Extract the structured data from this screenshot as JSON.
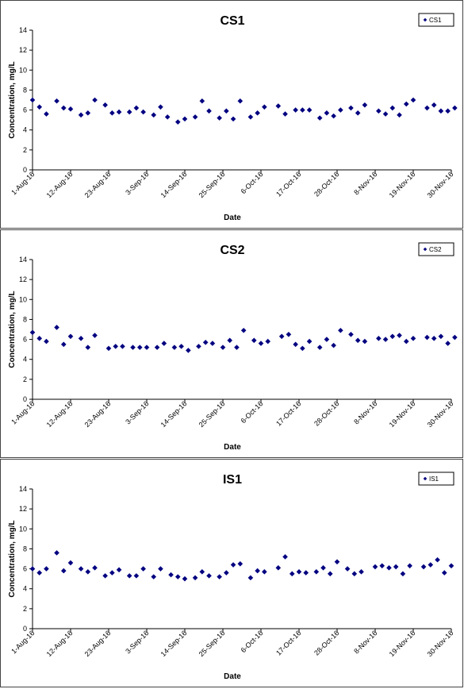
{
  "chart_data": [
    {
      "type": "scatter",
      "title": "CS1",
      "xlabel": "Date",
      "ylabel": "Concentration, mg/L",
      "ylim": [
        0,
        14
      ],
      "yticks": [
        0,
        2,
        4,
        6,
        8,
        10,
        12,
        14
      ],
      "xlim": [
        "2016-08-01",
        "2016-11-30"
      ],
      "xtick_labels": [
        "1-Aug-16",
        "12-Aug-16",
        "23-Aug-16",
        "3-Sep-16",
        "14-Sep-16",
        "25-Sep-16",
        "6-Oct-16",
        "17-Oct-16",
        "28-Oct-16",
        "8-Nov-16",
        "19-Nov-16",
        "30-Nov-16"
      ],
      "grid": false,
      "legend": "top-right",
      "color": "#000080",
      "series": [
        {
          "name": "CS1",
          "points": [
            {
              "x": "2016-08-01",
              "y": 7.0
            },
            {
              "x": "2016-08-03",
              "y": 6.3
            },
            {
              "x": "2016-08-05",
              "y": 5.6
            },
            {
              "x": "2016-08-08",
              "y": 6.9
            },
            {
              "x": "2016-08-10",
              "y": 6.2
            },
            {
              "x": "2016-08-12",
              "y": 6.1
            },
            {
              "x": "2016-08-15",
              "y": 5.5
            },
            {
              "x": "2016-08-17",
              "y": 5.7
            },
            {
              "x": "2016-08-19",
              "y": 7.0
            },
            {
              "x": "2016-08-22",
              "y": 6.5
            },
            {
              "x": "2016-08-24",
              "y": 5.7
            },
            {
              "x": "2016-08-26",
              "y": 5.8
            },
            {
              "x": "2016-08-29",
              "y": 5.8
            },
            {
              "x": "2016-08-31",
              "y": 6.2
            },
            {
              "x": "2016-09-02",
              "y": 5.8
            },
            {
              "x": "2016-09-05",
              "y": 5.5
            },
            {
              "x": "2016-09-07",
              "y": 6.3
            },
            {
              "x": "2016-09-09",
              "y": 5.3
            },
            {
              "x": "2016-09-12",
              "y": 4.8
            },
            {
              "x": "2016-09-14",
              "y": 5.1
            },
            {
              "x": "2016-09-17",
              "y": 5.3
            },
            {
              "x": "2016-09-19",
              "y": 6.9
            },
            {
              "x": "2016-09-21",
              "y": 5.9
            },
            {
              "x": "2016-09-24",
              "y": 5.2
            },
            {
              "x": "2016-09-26",
              "y": 5.9
            },
            {
              "x": "2016-09-28",
              "y": 5.1
            },
            {
              "x": "2016-09-30",
              "y": 6.9
            },
            {
              "x": "2016-10-03",
              "y": 5.3
            },
            {
              "x": "2016-10-05",
              "y": 5.7
            },
            {
              "x": "2016-10-07",
              "y": 6.3
            },
            {
              "x": "2016-10-11",
              "y": 6.4
            },
            {
              "x": "2016-10-13",
              "y": 5.6
            },
            {
              "x": "2016-10-16",
              "y": 6.0
            },
            {
              "x": "2016-10-18",
              "y": 6.0
            },
            {
              "x": "2016-10-20",
              "y": 6.0
            },
            {
              "x": "2016-10-23",
              "y": 5.2
            },
            {
              "x": "2016-10-25",
              "y": 5.7
            },
            {
              "x": "2016-10-27",
              "y": 5.4
            },
            {
              "x": "2016-10-29",
              "y": 6.0
            },
            {
              "x": "2016-11-01",
              "y": 6.2
            },
            {
              "x": "2016-11-03",
              "y": 5.7
            },
            {
              "x": "2016-11-05",
              "y": 6.5
            },
            {
              "x": "2016-11-09",
              "y": 5.9
            },
            {
              "x": "2016-11-11",
              "y": 5.6
            },
            {
              "x": "2016-11-13",
              "y": 6.2
            },
            {
              "x": "2016-11-15",
              "y": 5.5
            },
            {
              "x": "2016-11-17",
              "y": 6.6
            },
            {
              "x": "2016-11-19",
              "y": 7.0
            },
            {
              "x": "2016-11-23",
              "y": 6.2
            },
            {
              "x": "2016-11-25",
              "y": 6.5
            },
            {
              "x": "2016-11-27",
              "y": 5.9
            },
            {
              "x": "2016-11-29",
              "y": 5.9
            },
            {
              "x": "2016-12-01",
              "y": 6.2
            }
          ]
        }
      ]
    },
    {
      "type": "scatter",
      "title": "CS2",
      "xlabel": "Date",
      "ylabel": "Concentration, mg/L",
      "ylim": [
        0,
        14
      ],
      "yticks": [
        0,
        2,
        4,
        6,
        8,
        10,
        12,
        14
      ],
      "xlim": [
        "2016-08-01",
        "2016-11-30"
      ],
      "xtick_labels": [
        "1-Aug-16",
        "12-Aug-16",
        "23-Aug-16",
        "3-Sep-16",
        "14-Sep-16",
        "25-Sep-16",
        "6-Oct-16",
        "17-Oct-16",
        "28-Oct-16",
        "8-Nov-16",
        "19-Nov-16",
        "30-Nov-16"
      ],
      "grid": false,
      "legend": "top-right",
      "color": "#000080",
      "series": [
        {
          "name": "CS2",
          "points": [
            {
              "x": "2016-08-01",
              "y": 6.7
            },
            {
              "x": "2016-08-03",
              "y": 6.1
            },
            {
              "x": "2016-08-05",
              "y": 5.8
            },
            {
              "x": "2016-08-08",
              "y": 7.2
            },
            {
              "x": "2016-08-10",
              "y": 5.5
            },
            {
              "x": "2016-08-12",
              "y": 6.3
            },
            {
              "x": "2016-08-15",
              "y": 6.1
            },
            {
              "x": "2016-08-17",
              "y": 5.2
            },
            {
              "x": "2016-08-19",
              "y": 6.4
            },
            {
              "x": "2016-08-23",
              "y": 5.1
            },
            {
              "x": "2016-08-25",
              "y": 5.3
            },
            {
              "x": "2016-08-27",
              "y": 5.3
            },
            {
              "x": "2016-08-30",
              "y": 5.2
            },
            {
              "x": "2016-09-01",
              "y": 5.2
            },
            {
              "x": "2016-09-03",
              "y": 5.2
            },
            {
              "x": "2016-09-06",
              "y": 5.2
            },
            {
              "x": "2016-09-08",
              "y": 5.6
            },
            {
              "x": "2016-09-11",
              "y": 5.2
            },
            {
              "x": "2016-09-13",
              "y": 5.3
            },
            {
              "x": "2016-09-15",
              "y": 4.9
            },
            {
              "x": "2016-09-18",
              "y": 5.3
            },
            {
              "x": "2016-09-20",
              "y": 5.7
            },
            {
              "x": "2016-09-22",
              "y": 5.6
            },
            {
              "x": "2016-09-25",
              "y": 5.2
            },
            {
              "x": "2016-09-27",
              "y": 5.9
            },
            {
              "x": "2016-09-29",
              "y": 5.2
            },
            {
              "x": "2016-10-01",
              "y": 6.9
            },
            {
              "x": "2016-10-04",
              "y": 5.9
            },
            {
              "x": "2016-10-06",
              "y": 5.6
            },
            {
              "x": "2016-10-08",
              "y": 5.8
            },
            {
              "x": "2016-10-12",
              "y": 6.3
            },
            {
              "x": "2016-10-14",
              "y": 6.5
            },
            {
              "x": "2016-10-16",
              "y": 5.5
            },
            {
              "x": "2016-10-18",
              "y": 5.1
            },
            {
              "x": "2016-10-20",
              "y": 5.8
            },
            {
              "x": "2016-10-23",
              "y": 5.2
            },
            {
              "x": "2016-10-25",
              "y": 6.0
            },
            {
              "x": "2016-10-27",
              "y": 5.4
            },
            {
              "x": "2016-10-29",
              "y": 6.9
            },
            {
              "x": "2016-11-01",
              "y": 6.5
            },
            {
              "x": "2016-11-03",
              "y": 5.9
            },
            {
              "x": "2016-11-05",
              "y": 5.8
            },
            {
              "x": "2016-11-09",
              "y": 6.1
            },
            {
              "x": "2016-11-11",
              "y": 6.0
            },
            {
              "x": "2016-11-13",
              "y": 6.3
            },
            {
              "x": "2016-11-15",
              "y": 6.4
            },
            {
              "x": "2016-11-17",
              "y": 5.8
            },
            {
              "x": "2016-11-19",
              "y": 6.1
            },
            {
              "x": "2016-11-23",
              "y": 6.2
            },
            {
              "x": "2016-11-25",
              "y": 6.1
            },
            {
              "x": "2016-11-27",
              "y": 6.3
            },
            {
              "x": "2016-11-29",
              "y": 5.6
            },
            {
              "x": "2016-12-01",
              "y": 6.2
            }
          ]
        }
      ]
    },
    {
      "type": "scatter",
      "title": "IS1",
      "xlabel": "Date",
      "ylabel": "Concentration, mg/L",
      "ylim": [
        0,
        14
      ],
      "yticks": [
        0,
        2,
        4,
        6,
        8,
        10,
        12,
        14
      ],
      "xlim": [
        "2016-08-01",
        "2016-11-30"
      ],
      "xtick_labels": [
        "1-Aug-16",
        "12-Aug-16",
        "23-Aug-16",
        "3-Sep-16",
        "14-Sep-16",
        "25-Sep-16",
        "6-Oct-16",
        "17-Oct-16",
        "28-Oct-16",
        "8-Nov-16",
        "19-Nov-16",
        "30-Nov-16"
      ],
      "grid": false,
      "legend": "top-right",
      "color": "#000080",
      "series": [
        {
          "name": "IS1",
          "points": [
            {
              "x": "2016-08-01",
              "y": 6.0
            },
            {
              "x": "2016-08-03",
              "y": 5.6
            },
            {
              "x": "2016-08-05",
              "y": 6.0
            },
            {
              "x": "2016-08-08",
              "y": 7.6
            },
            {
              "x": "2016-08-10",
              "y": 5.8
            },
            {
              "x": "2016-08-12",
              "y": 6.6
            },
            {
              "x": "2016-08-15",
              "y": 6.0
            },
            {
              "x": "2016-08-17",
              "y": 5.7
            },
            {
              "x": "2016-08-19",
              "y": 6.1
            },
            {
              "x": "2016-08-22",
              "y": 5.3
            },
            {
              "x": "2016-08-24",
              "y": 5.6
            },
            {
              "x": "2016-08-26",
              "y": 5.9
            },
            {
              "x": "2016-08-29",
              "y": 5.3
            },
            {
              "x": "2016-08-31",
              "y": 5.3
            },
            {
              "x": "2016-09-02",
              "y": 6.0
            },
            {
              "x": "2016-09-05",
              "y": 5.2
            },
            {
              "x": "2016-09-07",
              "y": 6.0
            },
            {
              "x": "2016-09-10",
              "y": 5.4
            },
            {
              "x": "2016-09-12",
              "y": 5.2
            },
            {
              "x": "2016-09-14",
              "y": 5.0
            },
            {
              "x": "2016-09-17",
              "y": 5.1
            },
            {
              "x": "2016-09-19",
              "y": 5.7
            },
            {
              "x": "2016-09-21",
              "y": 5.3
            },
            {
              "x": "2016-09-24",
              "y": 5.2
            },
            {
              "x": "2016-09-26",
              "y": 5.6
            },
            {
              "x": "2016-09-28",
              "y": 6.4
            },
            {
              "x": "2016-09-30",
              "y": 6.5
            },
            {
              "x": "2016-10-03",
              "y": 5.1
            },
            {
              "x": "2016-10-05",
              "y": 5.8
            },
            {
              "x": "2016-10-07",
              "y": 5.7
            },
            {
              "x": "2016-10-11",
              "y": 6.1
            },
            {
              "x": "2016-10-13",
              "y": 7.2
            },
            {
              "x": "2016-10-15",
              "y": 5.5
            },
            {
              "x": "2016-10-17",
              "y": 5.7
            },
            {
              "x": "2016-10-19",
              "y": 5.6
            },
            {
              "x": "2016-10-22",
              "y": 5.7
            },
            {
              "x": "2016-10-24",
              "y": 6.1
            },
            {
              "x": "2016-10-26",
              "y": 5.5
            },
            {
              "x": "2016-10-28",
              "y": 6.7
            },
            {
              "x": "2016-10-31",
              "y": 6.0
            },
            {
              "x": "2016-11-02",
              "y": 5.5
            },
            {
              "x": "2016-11-04",
              "y": 5.7
            },
            {
              "x": "2016-11-08",
              "y": 6.2
            },
            {
              "x": "2016-11-10",
              "y": 6.3
            },
            {
              "x": "2016-11-12",
              "y": 6.1
            },
            {
              "x": "2016-11-14",
              "y": 6.2
            },
            {
              "x": "2016-11-16",
              "y": 5.5
            },
            {
              "x": "2016-11-18",
              "y": 6.3
            },
            {
              "x": "2016-11-22",
              "y": 6.2
            },
            {
              "x": "2016-11-24",
              "y": 6.4
            },
            {
              "x": "2016-11-26",
              "y": 6.9
            },
            {
              "x": "2016-11-28",
              "y": 5.6
            },
            {
              "x": "2016-11-30",
              "y": 6.3
            }
          ]
        }
      ]
    }
  ]
}
